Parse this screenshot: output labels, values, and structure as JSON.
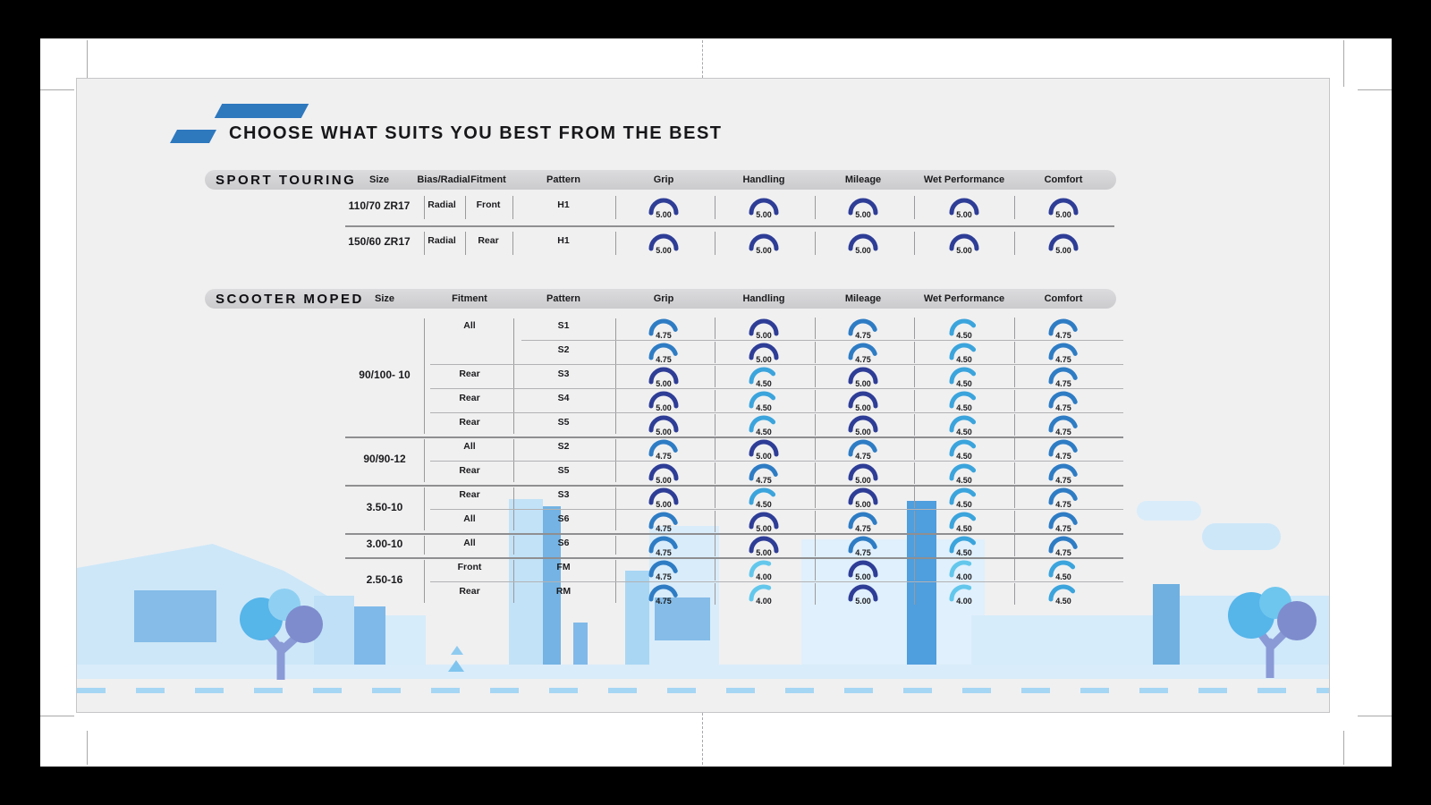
{
  "title": "CHOOSE WHAT SUITS YOU BEST FROM THE BEST",
  "rating_colors": {
    "5.00": "#2e3d96",
    "4.75": "#2e7cc4",
    "4.50": "#3ba4dc",
    "4.00": "#63c7ec"
  },
  "palette": {
    "brand_blue": "#2e78be",
    "card_bg": "#f0f0f1",
    "header_bar": "#d5d5d7",
    "text": "#1b1b1e",
    "illustration_blue": "#a9d6f3"
  },
  "tables": {
    "sport_touring": {
      "label": "SPORT TOURING",
      "columns": [
        "Size",
        "Bias/Radial",
        "Fitment",
        "Pattern",
        "Grip",
        "Handling",
        "Mileage",
        "Wet Performance",
        "Comfort"
      ],
      "rows": [
        {
          "size": "110/70 ZR17",
          "bias_radial": "Radial",
          "fitment": "Front",
          "pattern": "H1",
          "ratings": [
            "5.00",
            "5.00",
            "5.00",
            "5.00",
            "5.00"
          ]
        },
        {
          "size": "150/60 ZR17",
          "bias_radial": "Radial",
          "fitment": "Rear",
          "pattern": "H1",
          "ratings": [
            "5.00",
            "5.00",
            "5.00",
            "5.00",
            "5.00"
          ]
        }
      ]
    },
    "scooter_moped": {
      "label": "SCOOTER MOPED",
      "columns": [
        "Size",
        "Fitment",
        "Pattern",
        "Grip",
        "Handling",
        "Mileage",
        "Wet Performance",
        "Comfort"
      ],
      "groups": [
        {
          "size": "90/100- 10",
          "rows": [
            {
              "fitment": "All",
              "pattern": "S1",
              "ratings": [
                "4.75",
                "5.00",
                "4.75",
                "4.50",
                "4.75"
              ]
            },
            {
              "fitment": "",
              "pattern": "S2",
              "ratings": [
                "4.75",
                "5.00",
                "4.75",
                "4.50",
                "4.75"
              ]
            },
            {
              "fitment": "Rear",
              "pattern": "S3",
              "ratings": [
                "5.00",
                "4.50",
                "5.00",
                "4.50",
                "4.75"
              ]
            },
            {
              "fitment": "Rear",
              "pattern": "S4",
              "ratings": [
                "5.00",
                "4.50",
                "5.00",
                "4.50",
                "4.75"
              ]
            },
            {
              "fitment": "Rear",
              "pattern": "S5",
              "ratings": [
                "5.00",
                "4.50",
                "5.00",
                "4.50",
                "4.75"
              ]
            }
          ]
        },
        {
          "size": "90/90-12",
          "rows": [
            {
              "fitment": "All",
              "pattern": "S2",
              "ratings": [
                "4.75",
                "5.00",
                "4.75",
                "4.50",
                "4.75"
              ]
            },
            {
              "fitment": "Rear",
              "pattern": "S5",
              "ratings": [
                "5.00",
                "4.75",
                "5.00",
                "4.50",
                "4.75"
              ]
            }
          ]
        },
        {
          "size": "3.50-10",
          "rows": [
            {
              "fitment": "Rear",
              "pattern": "S3",
              "ratings": [
                "5.00",
                "4.50",
                "5.00",
                "4.50",
                "4.75"
              ]
            },
            {
              "fitment": "All",
              "pattern": "S6",
              "ratings": [
                "4.75",
                "5.00",
                "4.75",
                "4.50",
                "4.75"
              ]
            }
          ]
        },
        {
          "size": "3.00-10",
          "rows": [
            {
              "fitment": "All",
              "pattern": "S6",
              "ratings": [
                "4.75",
                "5.00",
                "4.75",
                "4.50",
                "4.75"
              ]
            }
          ]
        },
        {
          "size": "2.50-16",
          "rows": [
            {
              "fitment": "Front",
              "pattern": "FM",
              "ratings": [
                "4.75",
                "4.00",
                "5.00",
                "4.00",
                "4.50"
              ]
            },
            {
              "fitment": "Rear",
              "pattern": "RM",
              "ratings": [
                "4.75",
                "4.00",
                "5.00",
                "4.00",
                "4.50"
              ]
            }
          ]
        }
      ]
    }
  }
}
